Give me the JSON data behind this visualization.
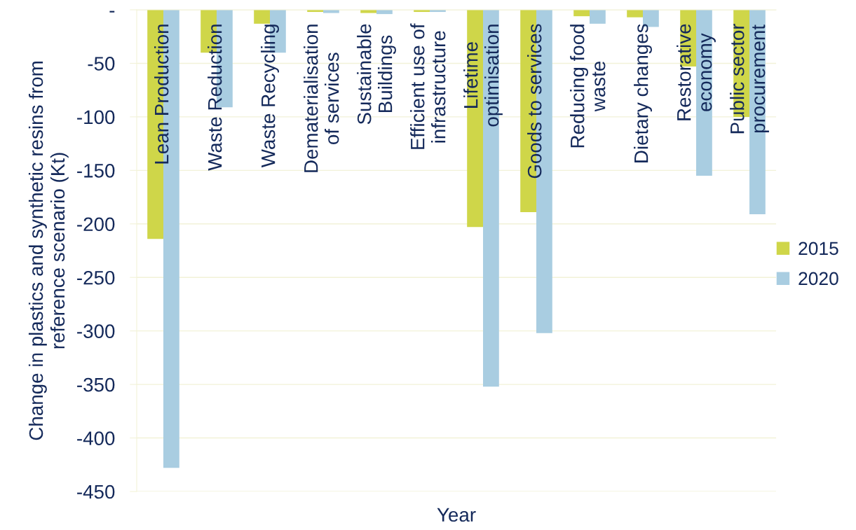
{
  "chart_data": {
    "type": "bar",
    "xlabel": "Year",
    "ylabel": "Change in plastics and synthetic resins from\nreference scenario (Kt)",
    "categories": [
      "Lean Production",
      "Waste Reduction",
      "Waste Recycling",
      "Dematerialisation\nof services",
      "Sustainable\nBuildings",
      "Efficient use of\ninfrastructure",
      "Lifetime\noptimisation",
      "Goods to services",
      "Reducing food\nwaste",
      "Dietary changes",
      "Restorative\neconomy",
      "Public sector\nprocurement"
    ],
    "series": [
      {
        "name": "2015",
        "color": "#cfd649",
        "values": [
          -214,
          -40,
          -13,
          -2,
          -3,
          -2,
          -203,
          -189,
          -6,
          -7,
          -53,
          -100
        ]
      },
      {
        "name": "2020",
        "color": "#a9cde1",
        "values": [
          -428,
          -91,
          -40,
          -3,
          -4,
          -2,
          -352,
          -302,
          -13,
          -16,
          -155,
          -191
        ]
      }
    ],
    "ylim": [
      -450,
      0
    ],
    "yticks": [
      {
        "value": 0,
        "label": "-"
      },
      -50,
      -100,
      -150,
      -200,
      -250,
      -300,
      -350,
      -400,
      -450
    ],
    "grid": "y",
    "legend": "right"
  }
}
